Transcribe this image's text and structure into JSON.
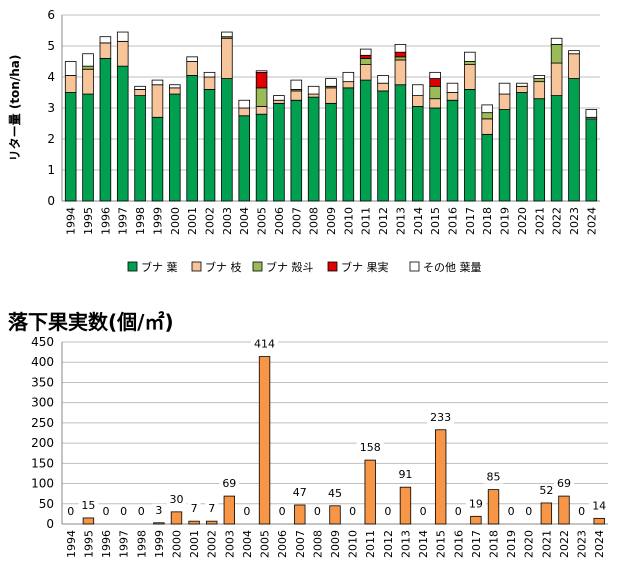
{
  "chart_data": [
    {
      "type": "bar",
      "stacked": true,
      "ylabel": "リター量 (ton/ha)",
      "ylim": [
        0,
        6
      ],
      "yticks": [
        0,
        1,
        2,
        3,
        4,
        5,
        6
      ],
      "grid": true,
      "legend_position": "bottom",
      "categories": [
        "1994",
        "1995",
        "1996",
        "1997",
        "1998",
        "1999",
        "2000",
        "2001",
        "2002",
        "2003",
        "2004",
        "2005",
        "2006",
        "2007",
        "2008",
        "2009",
        "2010",
        "2011",
        "2012",
        "2013",
        "2014",
        "2015",
        "2016",
        "2017",
        "2018",
        "2019",
        "2020",
        "2021",
        "2022",
        "2023",
        "2024"
      ],
      "series": [
        {
          "name": "ブナ 葉",
          "color": "#00A050",
          "values": [
            3.5,
            3.45,
            4.6,
            4.35,
            3.4,
            2.7,
            3.45,
            4.05,
            3.6,
            3.95,
            2.75,
            2.8,
            3.15,
            3.25,
            3.35,
            3.15,
            3.65,
            3.9,
            3.55,
            3.75,
            3.05,
            3.0,
            3.25,
            3.6,
            2.15,
            2.95,
            3.5,
            3.3,
            3.4,
            3.95,
            2.65
          ]
        },
        {
          "name": "ブナ 枝",
          "color": "#F8C49A",
          "values": [
            0.55,
            0.8,
            0.5,
            0.8,
            0.2,
            1.05,
            0.2,
            0.45,
            0.4,
            1.3,
            0.25,
            0.25,
            0.1,
            0.3,
            0.1,
            0.5,
            0.2,
            0.5,
            0.25,
            0.8,
            0.35,
            0.3,
            0.25,
            0.8,
            0.5,
            0.5,
            0.2,
            0.55,
            1.05,
            0.8,
            0.05
          ]
        },
        {
          "name": "ブナ 殻斗",
          "color": "#9BBB59",
          "values": [
            0,
            0.1,
            0,
            0,
            0,
            0,
            0,
            0,
            0,
            0.05,
            0,
            0.6,
            0,
            0.05,
            0,
            0.05,
            0,
            0.2,
            0,
            0.1,
            0,
            0.4,
            0,
            0.1,
            0.2,
            0,
            0,
            0.1,
            0.6,
            0,
            0
          ]
        },
        {
          "name": "ブナ 果実",
          "color": "#E00000",
          "values": [
            0,
            0,
            0,
            0,
            0,
            0,
            0,
            0,
            0,
            0,
            0,
            0.5,
            0,
            0,
            0,
            0,
            0,
            0.1,
            0,
            0.15,
            0,
            0.25,
            0,
            0,
            0,
            0,
            0,
            0,
            0,
            0,
            0
          ]
        },
        {
          "name": "その他 葉量",
          "color": "#FFFFFF",
          "values": [
            0.45,
            0.4,
            0.2,
            0.3,
            0.1,
            0.15,
            0.1,
            0.15,
            0.15,
            0.15,
            0.25,
            0.05,
            0.15,
            0.3,
            0.25,
            0.25,
            0.3,
            0.2,
            0.25,
            0.25,
            0.35,
            0.2,
            0.3,
            0.3,
            0.25,
            0.35,
            0.1,
            0.1,
            0.2,
            0.1,
            0.25
          ]
        }
      ]
    },
    {
      "type": "bar",
      "title": "落下果実数(個/㎡)",
      "ylim": [
        0,
        450
      ],
      "yticks": [
        0,
        50,
        100,
        150,
        200,
        250,
        300,
        350,
        400,
        450
      ],
      "grid": true,
      "color": "#F79646",
      "categories": [
        "1994",
        "1995",
        "1996",
        "1997",
        "1998",
        "1999",
        "2000",
        "2001",
        "2002",
        "2003",
        "2004",
        "2005",
        "2006",
        "2007",
        "2008",
        "2009",
        "2010",
        "2011",
        "2012",
        "2013",
        "2014",
        "2015",
        "2016",
        "2017",
        "2018",
        "2019",
        "2020",
        "2021",
        "2022",
        "2023",
        "2024"
      ],
      "values": [
        0,
        15,
        0,
        0,
        0,
        3,
        30,
        7,
        7,
        69,
        0,
        414,
        0,
        47,
        0,
        45,
        0,
        158,
        0,
        91,
        0,
        233,
        0,
        19,
        85,
        0,
        0,
        52,
        69,
        0,
        14
      ]
    }
  ]
}
